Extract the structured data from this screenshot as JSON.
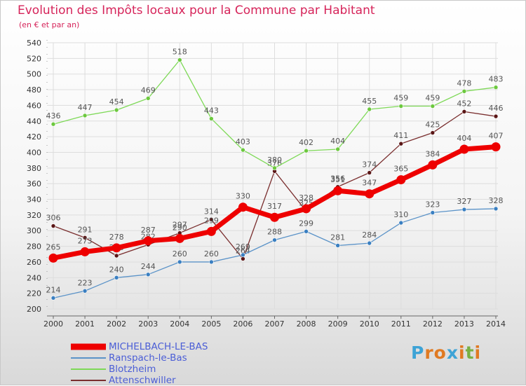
{
  "header": {
    "title": "Evolution des Impôts locaux pour la Commune par Habitant",
    "subtitle": "(en € et par an)"
  },
  "colors": {
    "title": "#d6245a",
    "legend_text": "#4b5ed6",
    "grid": "#dddddd",
    "axis_text": "#333333",
    "label_text": "#555555"
  },
  "brand": {
    "text": "Proxiti",
    "letter_colors": [
      "#3da3d6",
      "#e07a22",
      "#e07a22",
      "#3da3d6",
      "#e07a22",
      "#78b043",
      "#e07a22"
    ]
  },
  "chart_data": {
    "type": "line",
    "title": "Evolution des Impôts locaux pour la Commune par Habitant",
    "subtitle": "(en € et par an)",
    "xlabel": "",
    "ylabel": "",
    "categories": [
      "2000",
      "2001",
      "2002",
      "2003",
      "2004",
      "2005",
      "2006",
      "2007",
      "2008",
      "2009",
      "2010",
      "2011",
      "2012",
      "2013",
      "2014"
    ],
    "ylim": [
      200,
      540
    ],
    "yticks": [
      200,
      220,
      240,
      260,
      280,
      300,
      320,
      340,
      360,
      380,
      400,
      420,
      440,
      460,
      480,
      500,
      520,
      540
    ],
    "grid": true,
    "legend_position": "bottom-left",
    "series": [
      {
        "name": "Attenschwiller",
        "color": "#7a2e2e",
        "point_color": "#5a1616",
        "width": 1.3,
        "radius": 3,
        "values": [
          306,
          291,
          268,
          282,
          297,
          314,
          264,
          376,
          325,
          356,
          374,
          411,
          425,
          452,
          446
        ],
        "labels": [
          "306",
          "291",
          "268",
          "282",
          "297",
          "314",
          "264",
          "376",
          "325",
          "356",
          "374",
          "411",
          "425",
          "452",
          "446"
        ]
      },
      {
        "name": "Blotzheim",
        "color": "#7ed957",
        "point_color": "#6cc83e",
        "width": 1.3,
        "radius": 3,
        "values": [
          436,
          447,
          454,
          469,
          518,
          443,
          403,
          380,
          402,
          404,
          455,
          459,
          459,
          478,
          483
        ],
        "labels": [
          "436",
          "447",
          "454",
          "469",
          "518",
          "443",
          "403",
          "380",
          "402",
          "404",
          "455",
          "459",
          "459",
          "478",
          "483"
        ]
      },
      {
        "name": "Ranspach-le-Bas",
        "color": "#5b93c8",
        "point_color": "#3a7fc1",
        "width": 1.3,
        "radius": 3,
        "values": [
          214,
          223,
          240,
          244,
          260,
          260,
          269,
          288,
          299,
          281,
          284,
          310,
          323,
          327,
          328
        ],
        "labels": [
          "214",
          "223",
          "240",
          "244",
          "260",
          "260",
          "269",
          "288",
          "299",
          "281",
          "284",
          "310",
          "323",
          "327",
          "328"
        ]
      },
      {
        "name": "MICHELBACH-LE-BAS",
        "color": "#ee0000",
        "point_color": "#ee0000",
        "width": 7,
        "radius": 6.5,
        "values": [
          265,
          273,
          278,
          287,
          290,
          299,
          330,
          317,
          328,
          351,
          347,
          365,
          384,
          404,
          407
        ],
        "labels": [
          "265",
          "273",
          "278",
          "287",
          "290",
          "299",
          "330",
          "317",
          "328",
          "351",
          "347",
          "365",
          "384",
          "404",
          "407"
        ]
      }
    ]
  },
  "legend": {
    "items": [
      {
        "label": "MICHELBACH-LE-BAS",
        "color": "#ee0000",
        "thickness": 9
      },
      {
        "label": "Ranspach-le-Bas",
        "color": "#5b93c8",
        "thickness": 2
      },
      {
        "label": "Blotzheim",
        "color": "#7ed957",
        "thickness": 2
      },
      {
        "label": "Attenschwiller",
        "color": "#7a2e2e",
        "thickness": 2
      }
    ]
  }
}
